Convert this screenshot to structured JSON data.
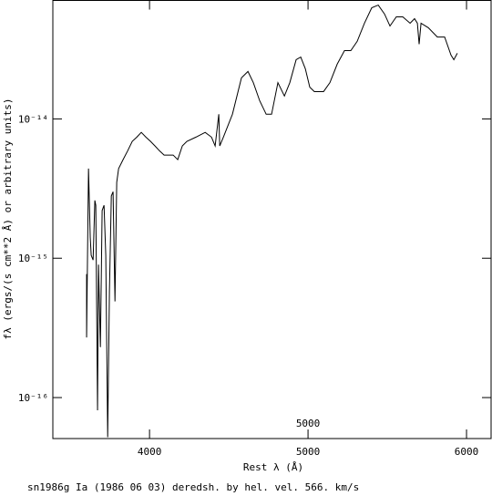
{
  "chart_data": {
    "type": "line",
    "yscale": "log",
    "color": "#000000",
    "xlabel": "Rest λ (Å)",
    "ylabel": "fλ (ergs/(s cm**2 Å) or arbitrary units)",
    "footer": "sn1986g Ia (1986 06 03) deredsh. by hel. vel.   566. km/s",
    "annotation": "5000",
    "xlim": [
      3390,
      6155
    ],
    "xticks": [
      4000,
      5000,
      6000
    ],
    "ylim": [
      5.08e-17,
      7.08e-14
    ],
    "yticks": [
      {
        "value": 1e-16,
        "label": "10⁻¹⁶"
      },
      {
        "value": 1e-15,
        "label": "10⁻¹⁵"
      },
      {
        "value": 1e-14,
        "label": "10⁻¹⁴"
      }
    ],
    "x": [
      3603,
      3603,
      3615,
      3626,
      3632,
      3644,
      3655,
      3661,
      3672,
      3678,
      3690,
      3701,
      3713,
      3724,
      3736,
      3747,
      3759,
      3770,
      3782,
      3793,
      3805,
      3833,
      3862,
      3891,
      3920,
      3948,
      3977,
      4006,
      4034,
      4063,
      4092,
      4149,
      4178,
      4207,
      4236,
      4293,
      4351,
      4391,
      4414,
      4437,
      4443,
      4466,
      4523,
      4580,
      4621,
      4655,
      4695,
      4736,
      4770,
      4810,
      4851,
      4885,
      4925,
      4954,
      4983,
      5011,
      5040,
      5098,
      5138,
      5184,
      5230,
      5270,
      5310,
      5356,
      5402,
      5443,
      5483,
      5517,
      5557,
      5598,
      5644,
      5672,
      5690,
      5701,
      5713,
      5759,
      5816,
      5862,
      5902,
      5920,
      5942
    ],
    "values": [
      7.7e-16,
      2.7e-16,
      4.4e-15,
      1.41e-15,
      1.05e-15,
      9.7e-16,
      2.6e-15,
      2.4e-15,
      8.1e-17,
      9e-16,
      2.3e-16,
      2.2e-15,
      2.4e-15,
      1.05e-15,
      5.2e-17,
      5.7e-16,
      2.8e-15,
      3e-15,
      4.9e-16,
      3.5e-15,
      4.4e-15,
      5.1e-15,
      5.9e-15,
      6.9e-15,
      7.4e-15,
      8e-15,
      7.4e-15,
      6.9e-15,
      6.4e-15,
      5.9e-15,
      5.5e-15,
      5.5e-15,
      5.1e-15,
      6.4e-15,
      6.9e-15,
      7.4e-15,
      8e-15,
      7.4e-15,
      6.4e-15,
      1.08e-14,
      6.4e-15,
      7.4e-15,
      1.08e-14,
      1.97e-14,
      2.19e-14,
      1.82e-14,
      1.35e-14,
      1.08e-14,
      1.08e-14,
      1.82e-14,
      1.46e-14,
      1.82e-14,
      2.66e-14,
      2.78e-14,
      2.29e-14,
      1.69e-14,
      1.57e-14,
      1.57e-14,
      1.82e-14,
      2.47e-14,
      3.09e-14,
      3.09e-14,
      3.6e-14,
      4.86e-14,
      6.27e-14,
      6.56e-14,
      5.65e-14,
      4.64e-14,
      5.4e-14,
      5.4e-14,
      4.86e-14,
      5.24e-14,
      4.86e-14,
      3.44e-14,
      4.86e-14,
      4.51e-14,
      3.87e-14,
      3.87e-14,
      2.87e-14,
      2.66e-14,
      2.96e-14
    ]
  }
}
